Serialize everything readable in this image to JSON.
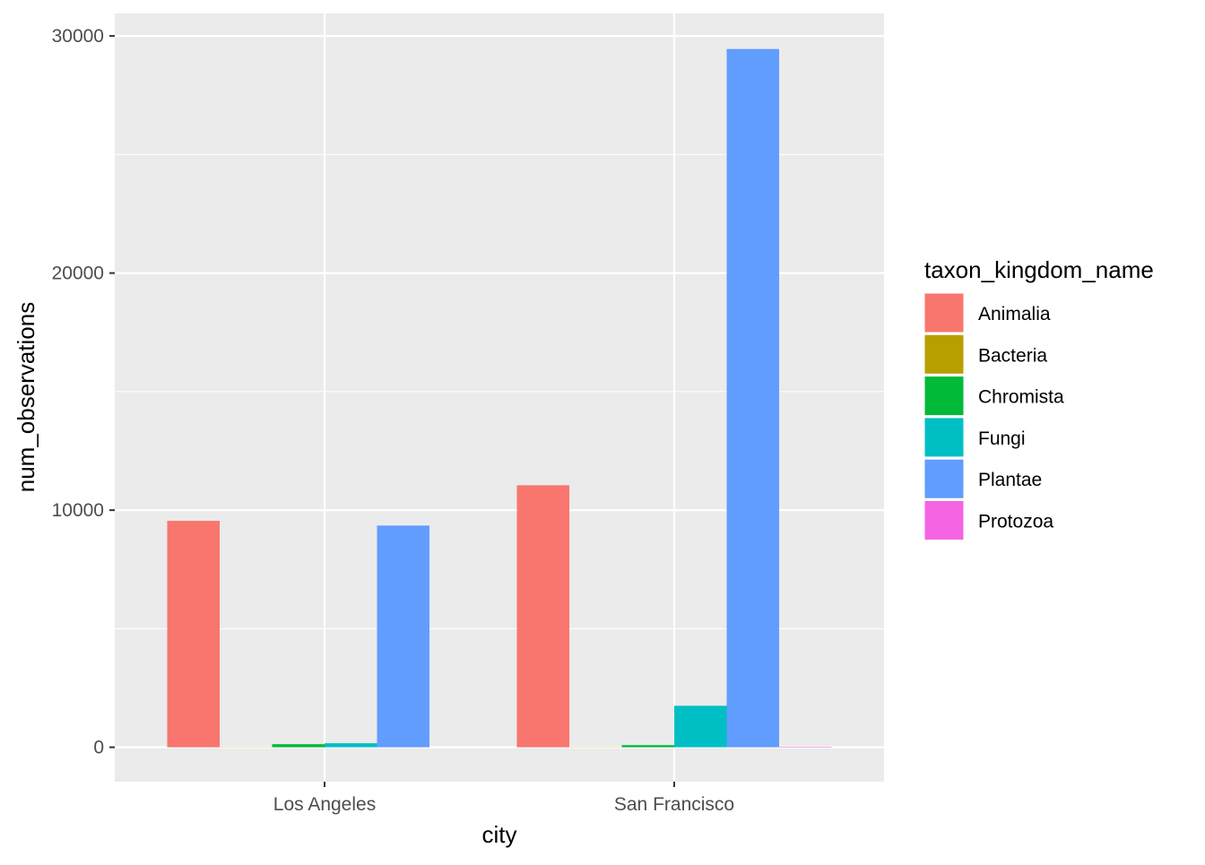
{
  "chart_data": {
    "type": "bar",
    "xlabel": "city",
    "ylabel": "num_observations",
    "categories": [
      "Los Angeles",
      "San Francisco"
    ],
    "ylim": [
      -1450,
      30950
    ],
    "yticks": [
      0,
      10000,
      20000,
      30000
    ],
    "grid": true,
    "legend": {
      "title": "taxon_kingdom_name",
      "position": "right"
    },
    "series": [
      {
        "name": "Animalia",
        "color": "#F8766D",
        "values": [
          9550,
          11050
        ]
      },
      {
        "name": "Bacteria",
        "color": "#B79F00",
        "values": [
          10,
          10
        ]
      },
      {
        "name": "Chromista",
        "color": "#00BA38",
        "values": [
          130,
          90
        ]
      },
      {
        "name": "Fungi",
        "color": "#00BFC4",
        "values": [
          170,
          1750
        ]
      },
      {
        "name": "Plantae",
        "color": "#619CFF",
        "values": [
          9350,
          29450
        ]
      },
      {
        "name": "Protozoa",
        "color": "#F564E3",
        "values": [
          0,
          20
        ]
      }
    ]
  }
}
